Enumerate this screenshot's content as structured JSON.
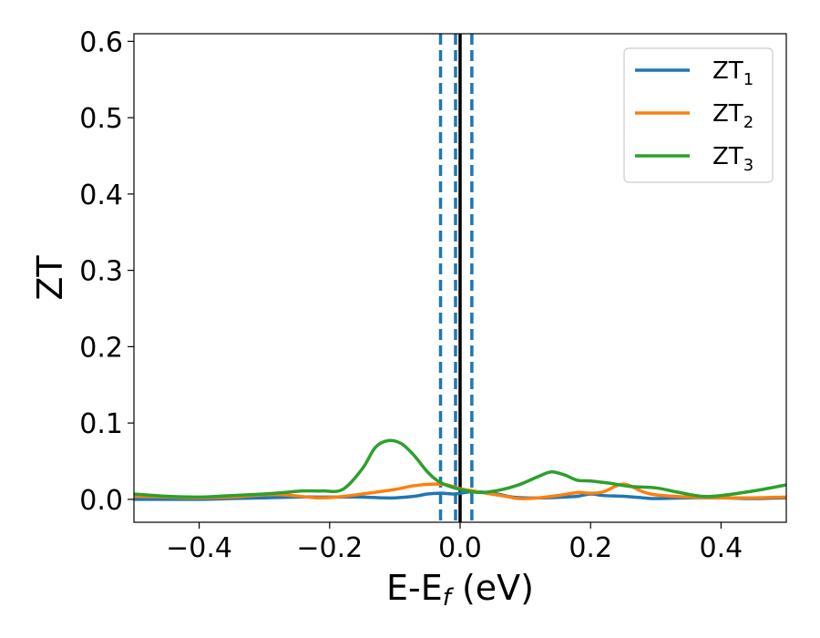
{
  "chart_data": {
    "type": "line",
    "title": "",
    "xlabel": {
      "base": "E-E",
      "sub": "f",
      "suffix": " (eV)"
    },
    "ylabel": "ZT",
    "xlim": [
      -0.5,
      0.5
    ],
    "ylim": [
      -0.03,
      0.61
    ],
    "xticks": [
      -0.4,
      -0.2,
      0.0,
      0.2,
      0.4
    ],
    "xtick_labels": [
      "−0.4",
      "−0.2",
      "0.0",
      "0.2",
      "0.4"
    ],
    "yticks": [
      0.0,
      0.1,
      0.2,
      0.3,
      0.4,
      0.5,
      0.6
    ],
    "ytick_labels": [
      "0.0",
      "0.1",
      "0.2",
      "0.3",
      "0.4",
      "0.5",
      "0.6"
    ],
    "grid": false,
    "legend_position": "top-right",
    "vertical_lines": [
      {
        "x": -0.03,
        "style": "dashed",
        "color": "#1f77b4"
      },
      {
        "x": -0.007,
        "style": "dashed",
        "color": "#1f77b4"
      },
      {
        "x": 0.0,
        "style": "solid",
        "color": "#000000"
      },
      {
        "x": 0.018,
        "style": "dashed",
        "color": "#1f77b4"
      }
    ],
    "series": [
      {
        "name": "ZT",
        "sub": "1",
        "color": "#1f77b4",
        "x": [
          -0.5,
          -0.45,
          -0.4,
          -0.35,
          -0.3,
          -0.25,
          -0.2,
          -0.15,
          -0.12,
          -0.1,
          -0.07,
          -0.05,
          -0.03,
          -0.01,
          0.0,
          0.02,
          0.05,
          0.08,
          0.1,
          0.13,
          0.16,
          0.18,
          0.2,
          0.22,
          0.25,
          0.28,
          0.3,
          0.35,
          0.4,
          0.45,
          0.5
        ],
        "y": [
          0.0,
          0.0,
          0.0,
          0.001,
          0.002,
          0.003,
          0.003,
          0.003,
          0.002,
          0.002,
          0.004,
          0.007,
          0.008,
          0.007,
          0.008,
          0.01,
          0.008,
          0.003,
          0.002,
          0.002,
          0.003,
          0.004,
          0.007,
          0.005,
          0.004,
          0.002,
          0.001,
          0.002,
          0.002,
          0.001,
          0.002
        ]
      },
      {
        "name": "ZT",
        "sub": "2",
        "color": "#ff7f0e",
        "x": [
          -0.5,
          -0.45,
          -0.4,
          -0.35,
          -0.3,
          -0.27,
          -0.22,
          -0.19,
          -0.15,
          -0.1,
          -0.07,
          -0.04,
          -0.02,
          0.0,
          0.02,
          0.04,
          0.07,
          0.09,
          0.12,
          0.15,
          0.18,
          0.2,
          0.22,
          0.25,
          0.28,
          0.3,
          0.35,
          0.4,
          0.45,
          0.5
        ],
        "y": [
          0.004,
          0.003,
          0.002,
          0.003,
          0.006,
          0.006,
          0.002,
          0.003,
          0.007,
          0.013,
          0.018,
          0.02,
          0.019,
          0.014,
          0.011,
          0.008,
          0.004,
          0.001,
          0.002,
          0.005,
          0.009,
          0.008,
          0.01,
          0.02,
          0.01,
          0.006,
          0.003,
          0.002,
          0.002,
          0.003
        ]
      },
      {
        "name": "ZT",
        "sub": "3",
        "color": "#2ca02c",
        "x": [
          -0.5,
          -0.45,
          -0.4,
          -0.35,
          -0.3,
          -0.27,
          -0.24,
          -0.21,
          -0.18,
          -0.15,
          -0.13,
          -0.11,
          -0.09,
          -0.07,
          -0.05,
          -0.03,
          0.0,
          0.03,
          0.06,
          0.09,
          0.12,
          0.14,
          0.16,
          0.18,
          0.2,
          0.23,
          0.26,
          0.3,
          0.33,
          0.37,
          0.4,
          0.45,
          0.5
        ],
        "y": [
          0.007,
          0.004,
          0.003,
          0.005,
          0.007,
          0.009,
          0.011,
          0.011,
          0.013,
          0.04,
          0.068,
          0.077,
          0.073,
          0.057,
          0.036,
          0.022,
          0.013,
          0.009,
          0.012,
          0.019,
          0.03,
          0.036,
          0.032,
          0.025,
          0.024,
          0.021,
          0.017,
          0.015,
          0.01,
          0.004,
          0.005,
          0.011,
          0.019
        ]
      }
    ]
  }
}
